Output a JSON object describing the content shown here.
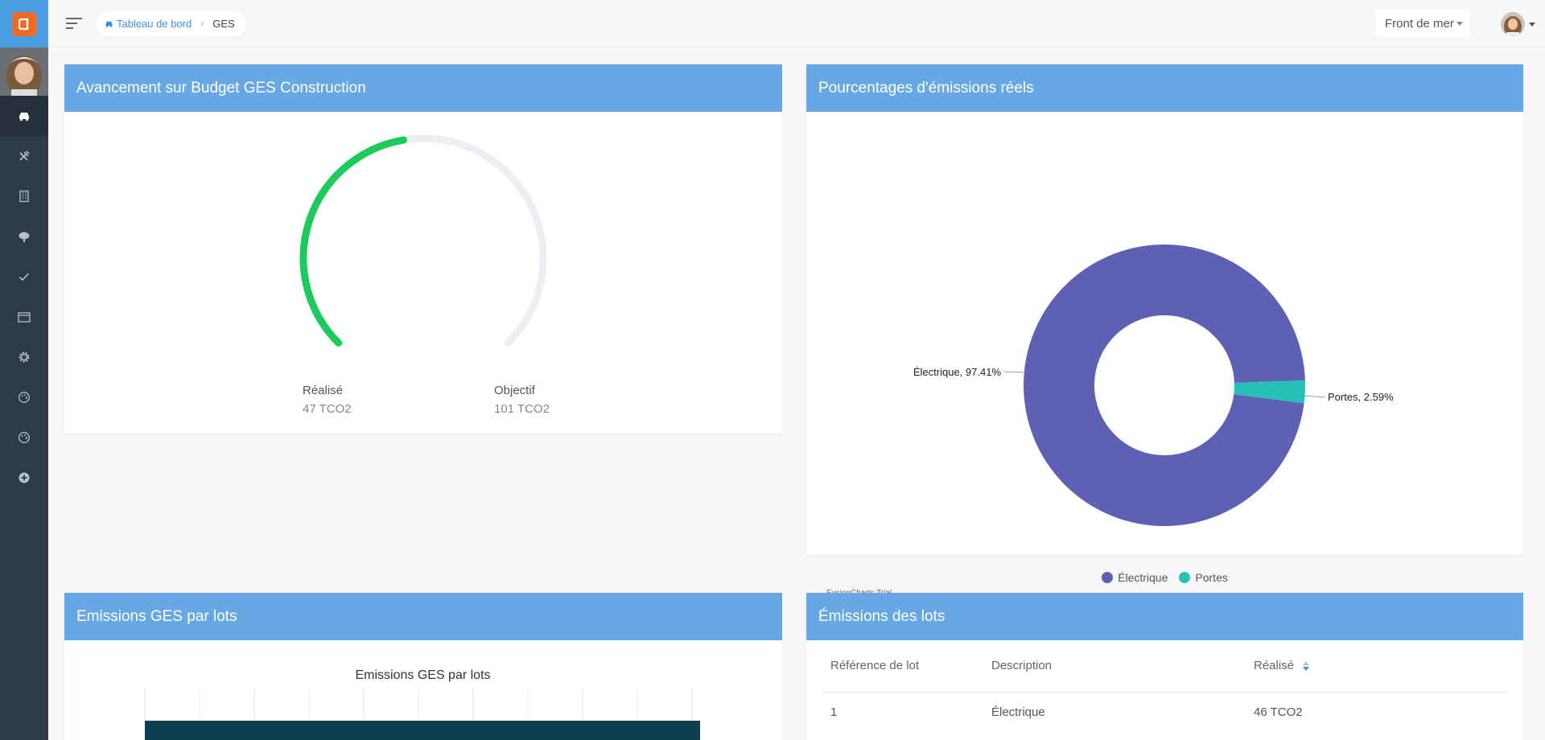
{
  "breadcrumb": {
    "home_label": "Tableau de bord",
    "current": "GES"
  },
  "header": {
    "site_selector": "Front de mer"
  },
  "colors": {
    "header_bar": "#67a8e4",
    "gauge_done": "#1ccb5c",
    "gauge_track": "#eceef4",
    "electrique": "#5d61b6",
    "portes": "#26c0b8",
    "logo": "#f26a21"
  },
  "sidebar": {
    "items": [
      "dashboard-icon",
      "tools-icon",
      "building-icon",
      "tree-icon",
      "check-icon",
      "window-icon",
      "gear-icon",
      "palette-icon",
      "palette-icon",
      "plus-circle-icon"
    ]
  },
  "budget_card": {
    "title": "Avancement sur Budget GES Construction",
    "progress": 0.465,
    "realise_label": "Réalisé",
    "realise_value": "47 TCO2",
    "objectif_label": "Objectif",
    "objectif_value": "101 TCO2"
  },
  "emissions_pct_card": {
    "title": "Pourcentages d'émissions réels",
    "trial_label": "FusionCharts Trial"
  },
  "chart_data": {
    "type": "pie",
    "title": "",
    "categories": [
      "Électrique",
      "Portes"
    ],
    "values": [
      97.41,
      2.59
    ],
    "data_labels": [
      "Électrique, 97.41%",
      "Portes, 2.59%"
    ],
    "colors": [
      "#5d61b6",
      "#26c0b8"
    ],
    "legend": "bottom"
  },
  "lots_chart_card": {
    "title": "Emissions GES par lots",
    "chart_title": "Emissions GES par lots"
  },
  "lots_table_card": {
    "title": "Émissions des lots",
    "columns": [
      "Référence de lot",
      "Description",
      "Réalisé"
    ],
    "rows": [
      [
        "1",
        "Électrique",
        "46 TCO2"
      ]
    ]
  }
}
